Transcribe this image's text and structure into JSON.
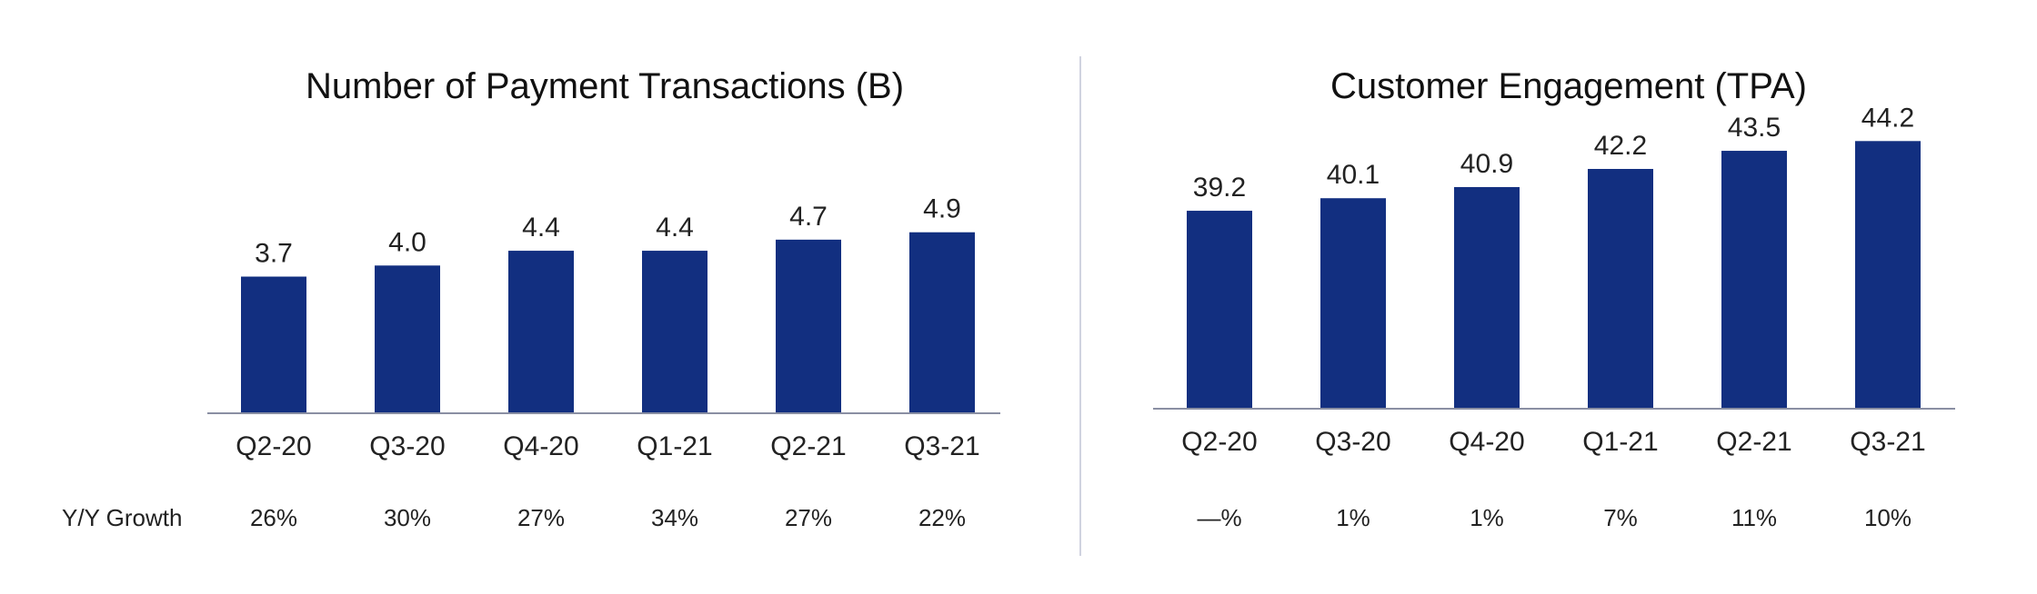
{
  "chart_data": [
    {
      "type": "bar",
      "title": "Number of Payment Transactions (B)",
      "categories": [
        "Q2-20",
        "Q3-20",
        "Q4-20",
        "Q1-21",
        "Q2-21",
        "Q3-21"
      ],
      "values": [
        3.7,
        4.0,
        4.4,
        4.4,
        4.7,
        4.9
      ],
      "value_labels": [
        "3.7",
        "4.0",
        "4.4",
        "4.4",
        "4.7",
        "4.9"
      ],
      "row_label": "Y/Y Growth",
      "growth": [
        "26%",
        "30%",
        "27%",
        "34%",
        "27%",
        "22%"
      ],
      "ylim": [
        0,
        7.5
      ],
      "grid": false,
      "bar_color": "#122F80"
    },
    {
      "type": "bar",
      "title": "Customer Engagement (TPA)",
      "categories": [
        "Q2-20",
        "Q3-20",
        "Q4-20",
        "Q1-21",
        "Q2-21",
        "Q3-21"
      ],
      "values": [
        39.2,
        40.1,
        40.9,
        42.2,
        43.5,
        44.2
      ],
      "value_labels": [
        "39.2",
        "40.1",
        "40.9",
        "42.2",
        "43.5",
        "44.2"
      ],
      "row_label": "",
      "growth": [
        "—%",
        "1%",
        "1%",
        "7%",
        "11%",
        "10%"
      ],
      "ylim": [
        25,
        46.5
      ],
      "grid": false,
      "bar_color": "#122F80"
    }
  ],
  "colors": {
    "bar": "#122F80",
    "axis": "#8A8FA3",
    "divider": "#D0D3E0"
  }
}
